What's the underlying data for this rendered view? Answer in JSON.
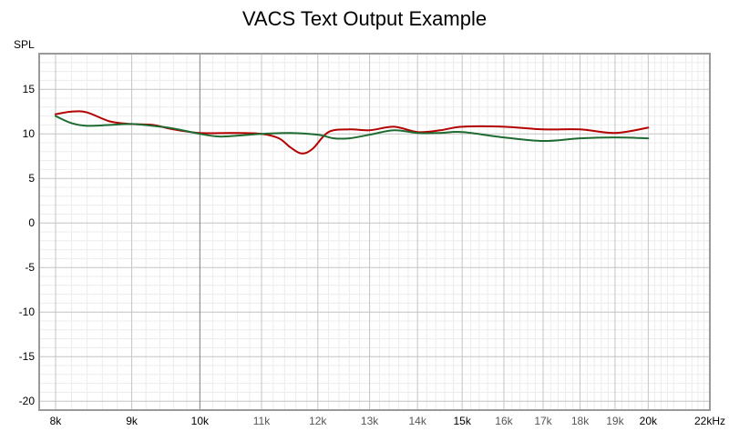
{
  "chart_data": {
    "type": "line",
    "title": "VACS Text Output Example",
    "ylabel": "SPL",
    "xlabel": "",
    "x_scale": "log",
    "xlim": [
      7800,
      22000
    ],
    "ylim": [
      -21,
      19
    ],
    "grid": true,
    "y_ticks": [
      15,
      10,
      5,
      0,
      -5,
      -10,
      -15,
      -20
    ],
    "x_ticks": [
      {
        "value": 8000,
        "label": "8k"
      },
      {
        "value": 9000,
        "label": "9k"
      },
      {
        "value": 10000,
        "label": "10k"
      },
      {
        "value": 11000,
        "label": "11k"
      },
      {
        "value": 12000,
        "label": "12k"
      },
      {
        "value": 13000,
        "label": "13k"
      },
      {
        "value": 14000,
        "label": "14k"
      },
      {
        "value": 15000,
        "label": "15k"
      },
      {
        "value": 16000,
        "label": "16k"
      },
      {
        "value": 17000,
        "label": "17k"
      },
      {
        "value": 18000,
        "label": "18k"
      },
      {
        "value": 19000,
        "label": "19k"
      },
      {
        "value": 20000,
        "label": "20k"
      },
      {
        "value": 22000,
        "label": "22kHz"
      }
    ],
    "series": [
      {
        "color": "#b40000",
        "x": [
          8000,
          8200,
          8400,
          8700,
          9000,
          9300,
          9600,
          10000,
          10500,
          11000,
          11300,
          11500,
          11700,
          11900,
          12200,
          12600,
          13000,
          13500,
          14000,
          14500,
          15000,
          16000,
          17000,
          18000,
          19000,
          20000
        ],
        "y": [
          12.2,
          12.5,
          12.4,
          11.4,
          11.1,
          11.0,
          10.5,
          10.1,
          10.1,
          10.0,
          9.5,
          8.5,
          7.8,
          8.3,
          10.2,
          10.5,
          10.4,
          10.8,
          10.2,
          10.4,
          10.8,
          10.8,
          10.5,
          10.5,
          10.1,
          10.7
        ]
      },
      {
        "color": "#1e6b32",
        "x": [
          8000,
          8200,
          8400,
          8700,
          9000,
          9300,
          9600,
          10000,
          10300,
          10600,
          11000,
          11500,
          12000,
          12300,
          12600,
          13000,
          13500,
          14000,
          14500,
          15000,
          16000,
          17000,
          18000,
          19000,
          20000
        ],
        "y": [
          12.0,
          11.2,
          10.9,
          11.0,
          11.1,
          10.9,
          10.6,
          10.0,
          9.7,
          9.8,
          10.0,
          10.1,
          9.9,
          9.5,
          9.5,
          9.9,
          10.4,
          10.1,
          10.1,
          10.2,
          9.6,
          9.2,
          9.5,
          9.6,
          9.5
        ]
      }
    ]
  }
}
